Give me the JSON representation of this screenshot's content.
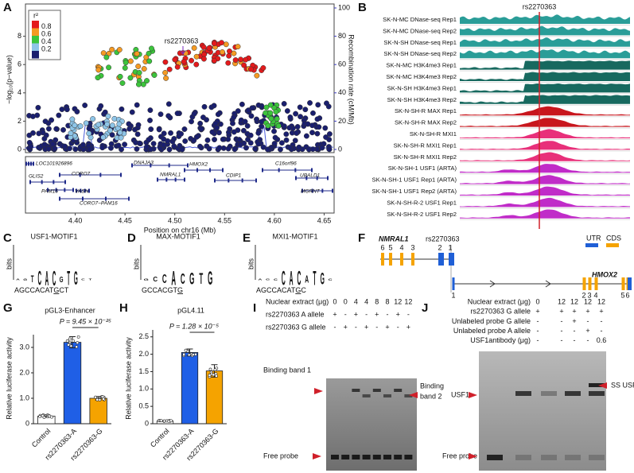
{
  "figure": {
    "A": {
      "label": "A",
      "y_label": "−log₁₀(p−value)",
      "y2_label": "Recombination rate (cM/Mb)",
      "x_label": "Position on chr16 (Mb)",
      "snp": "rs2270363",
      "ylim": [
        0,
        10
      ],
      "yticks": [
        0,
        2,
        4,
        6,
        8
      ],
      "y2lim": [
        0,
        100
      ],
      "y2ticks": [
        0,
        20,
        40,
        60,
        80,
        100
      ],
      "xlim": [
        4.35,
        4.66
      ],
      "xticks": [
        {
          "value": 4.4,
          "label": "4.40"
        },
        {
          "value": 4.45,
          "label": "4.45"
        },
        {
          "value": 4.5,
          "label": "4.50"
        },
        {
          "value": 4.55,
          "label": "4.55"
        },
        {
          "value": 4.6,
          "label": "4.60"
        },
        {
          "value": 4.65,
          "label": "4.65"
        }
      ],
      "legend_title": "r²",
      "legend_colors": [
        "#e41a1c",
        "#f59a23",
        "#3cc43c",
        "#8ec5e8",
        "#1a1f6e"
      ],
      "legend_ticks": [
        0.8,
        0.6,
        0.4,
        0.2
      ],
      "genes": [
        {
          "name": "LOC101926896",
          "color": "#222222"
        },
        {
          "name": "GLIS2",
          "color": "#222222"
        },
        {
          "name": "PAM16",
          "color": "#222222"
        },
        {
          "name": "CORO7",
          "color": "#c0282d"
        },
        {
          "name": "VASN",
          "color": "#222222"
        },
        {
          "name": "CORO7−PAM16",
          "color": "#222222"
        },
        {
          "name": "DNAJA3",
          "color": "#c0282d"
        },
        {
          "name": "NMRAL1",
          "color": "#c0282d"
        },
        {
          "name": "HMOX2",
          "color": "#222222"
        },
        {
          "name": "CDIP1",
          "color": "#c0282d"
        },
        {
          "name": "C16orf96",
          "color": "#222222"
        },
        {
          "name": "UBALD1",
          "color": "#222222"
        },
        {
          "name": "MGRNT",
          "color": "#222222"
        }
      ]
    },
    "B": {
      "label": "B",
      "snp": "rs2270363",
      "tracks": [
        {
          "name": "SK-N-MC DNase-seq Rep1",
          "color": "#2a9d98"
        },
        {
          "name": "SK-N-MC DNase-seq Rep2",
          "color": "#2a9d98"
        },
        {
          "name": "SK-N-SH DNase-seq Rep1",
          "color": "#2a9d98"
        },
        {
          "name": "SK-N-SH DNase-seq Rep2",
          "color": "#2a9d98"
        },
        {
          "name": "SK-N-MC H3K4me3 Rep1",
          "color": "#17695f"
        },
        {
          "name": "SK-N-MC H3K4me3 Rep2",
          "color": "#17695f"
        },
        {
          "name": "SK-N-SH H3K4me3 Rep1",
          "color": "#17695f"
        },
        {
          "name": "SK-N-SH H3K4me3 Rep2",
          "color": "#17695f"
        },
        {
          "name": "SK-N-SH-R MAX Rep1",
          "color": "#c8161d"
        },
        {
          "name": "SK-N-SH-R MAX Rep2",
          "color": "#c8161d"
        },
        {
          "name": "SK-N-SH-R MXI1",
          "color": "#e8307a"
        },
        {
          "name": "SK-N-SH-R MXI1 Rep1",
          "color": "#e8307a"
        },
        {
          "name": "SK-N-SH-R MXI1 Rep2",
          "color": "#e8307a"
        },
        {
          "name": "SK-N-SH-1 USF1 (ARTA)",
          "color": "#c02cc8"
        },
        {
          "name": "SK-N-SH-1 USF1 Rep1 (ARTA)",
          "color": "#c02cc8"
        },
        {
          "name": "SK-N-SH-1 USF1 Rep2 (ARTA)",
          "color": "#c02cc8"
        },
        {
          "name": "SK-N-SH-R-2 USF1 Rep1",
          "color": "#c02cc8"
        },
        {
          "name": "SK-N-SH-R-2 USF1 Rep2",
          "color": "#c02cc8"
        }
      ]
    },
    "C": {
      "label": "C",
      "title": "USF1-MOTIF1",
      "axis": "bits",
      "logo": [
        "A",
        "G",
        "T",
        "C",
        "A",
        "C",
        "G",
        "T",
        "G",
        "C",
        "T"
      ],
      "heights": [
        0.2,
        0.3,
        0.9,
        1.9,
        2,
        2,
        0.8,
        1.9,
        1.8,
        0.2,
        0.2
      ],
      "seq": [
        "AGCCACAT",
        "G",
        "CT"
      ]
    },
    "D": {
      "label": "D",
      "title": "MAX-MOTIF1",
      "axis": "bits",
      "logo": [
        "G",
        "C",
        "C",
        "A",
        "C",
        "G",
        "T",
        "G"
      ],
      "heights": [
        0.3,
        0.6,
        1.2,
        1.9,
        1.4,
        1.6,
        1.5,
        1.8
      ],
      "seq": [
        "GCCACGT",
        "G",
        ""
      ]
    },
    "E": {
      "label": "E",
      "title": "MXI1-MOTIF1",
      "axis": "bits",
      "logo": [
        "A",
        "G",
        "C",
        "C",
        "A",
        "C",
        "A",
        "T",
        "G",
        "C"
      ],
      "heights": [
        0.2,
        0.2,
        0.3,
        1.9,
        1.9,
        1.9,
        1.0,
        1.9,
        1.6,
        0.3
      ],
      "seq": [
        "AGCCACAT",
        "G",
        "C"
      ]
    },
    "F": {
      "label": "F",
      "gene1": "NMRAL1",
      "snp": "rs2270363",
      "gene2": "HMOX2",
      "utr": "UTR",
      "cds": "CDS",
      "utr_color": "#1f5fd6",
      "cds_color": "#f5a300",
      "exons1": [
        6,
        5,
        4,
        3,
        2,
        1
      ],
      "exons2": [
        1,
        2,
        3,
        4,
        5,
        6
      ]
    },
    "I": {
      "label": "I",
      "rows": [
        {
          "name": "Nuclear extract (μg)",
          "cells": [
            "0",
            "0",
            "4",
            "4",
            "8",
            "8",
            "12",
            "12"
          ]
        },
        {
          "name": "rs2270363 A allele",
          "cells": [
            "+",
            "-",
            "+",
            "-",
            "+",
            "-",
            "+",
            "-"
          ]
        },
        {
          "name": "rs2270363 G allele",
          "cells": [
            "-",
            "+",
            "-",
            "+",
            "-",
            "+",
            "-",
            "+"
          ]
        }
      ],
      "band1": "Binding band 1",
      "band2": [
        "Binding",
        "band 2"
      ],
      "free": "Free probe"
    },
    "J": {
      "label": "J",
      "rows": [
        {
          "name": "Nuclear extract (μg)",
          "cells": [
            "0",
            "12",
            "12",
            "12",
            "12"
          ]
        },
        {
          "name": "rs2270363 G allele",
          "cells": [
            "+",
            "+",
            "+",
            "+",
            "+"
          ]
        },
        {
          "name": "Unlabeled probe G allele",
          "cells": [
            "-",
            "-",
            "+",
            "-",
            "-"
          ]
        },
        {
          "name": "Unlabeled probe A allele",
          "cells": [
            "-",
            "-",
            "-",
            "+",
            "-"
          ]
        },
        {
          "name": "USF1antibody (μg)",
          "cells": [
            "-",
            "-",
            "-",
            "-",
            "0.6"
          ]
        }
      ],
      "usf1": "USF1",
      "ss": "SS USF1",
      "free": "Free probe"
    }
  },
  "chart_data": [
    {
      "type": "bar",
      "label": "G",
      "title": "pGL3-Enhancer",
      "y_label": "Relative luciferase activity",
      "annotation": "P = 9.45 × 10⁻²⁵",
      "categories": [
        "Control",
        "rs2270363-A",
        "rs2270363-G"
      ],
      "values": [
        0.3,
        3.2,
        1.0
      ],
      "errors": [
        0.05,
        0.22,
        0.07
      ],
      "colors": [
        "#ffffff",
        "#1f5fe6",
        "#f5a300"
      ],
      "ylim": [
        0,
        3.5
      ],
      "yticks": [
        0,
        {
          "value": 1,
          "label": "1.0"
        },
        {
          "value": 2,
          "label": "2.0"
        },
        {
          "value": 3,
          "label": "3.0"
        }
      ]
    },
    {
      "type": "bar",
      "label": "H",
      "title": "pGL4.11",
      "y_label": "Relative luciferase activity",
      "annotation": "P = 1.28 × 10⁻⁵",
      "categories": [
        "Control",
        "rs2270363-A",
        "rs2270363-G"
      ],
      "values": [
        0.08,
        2.05,
        1.52
      ],
      "errors": [
        0.01,
        0.1,
        0.18
      ],
      "colors": [
        "#ffffff",
        "#1f5fe6",
        "#f5a300"
      ],
      "ylim": [
        0,
        2.7
      ],
      "yticks": [
        0,
        0.5,
        {
          "value": 1,
          "label": "1.0"
        },
        1.5,
        {
          "value": 2,
          "label": "2.0"
        },
        2.5
      ]
    }
  ]
}
